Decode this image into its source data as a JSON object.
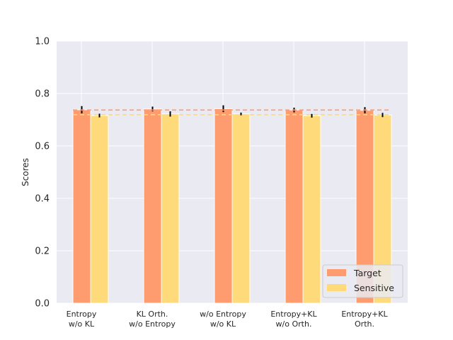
{
  "chart_data": {
    "type": "bar",
    "title": "",
    "xlabel": "",
    "ylabel": "Scores",
    "ylim": [
      0,
      1.0
    ],
    "yticks": [
      "0.0",
      "0.2",
      "0.4",
      "0.6",
      "0.8",
      "1.0"
    ],
    "grid": true,
    "legend_position": "bottom-right",
    "categories": [
      [
        "Entropy",
        "w/o KL"
      ],
      [
        "KL Orth.",
        "w/o Entropy"
      ],
      [
        "w/o Entropy",
        "w/o KL"
      ],
      [
        "Entropy+KL",
        "w/o Orth."
      ],
      [
        "Entropy+KL",
        "Orth."
      ]
    ],
    "series": [
      {
        "name": "Target",
        "color": "#FF9C6F",
        "values": [
          0.738,
          0.741,
          0.742,
          0.737,
          0.736
        ],
        "errors": [
          0.014,
          0.009,
          0.013,
          0.009,
          0.012
        ],
        "reference_line": 0.737
      },
      {
        "name": "Sensitive",
        "color": "#FFDA7B",
        "values": [
          0.716,
          0.722,
          0.722,
          0.715,
          0.718
        ],
        "errors": [
          0.007,
          0.01,
          0.005,
          0.007,
          0.008
        ],
        "reference_line": 0.719
      }
    ]
  }
}
